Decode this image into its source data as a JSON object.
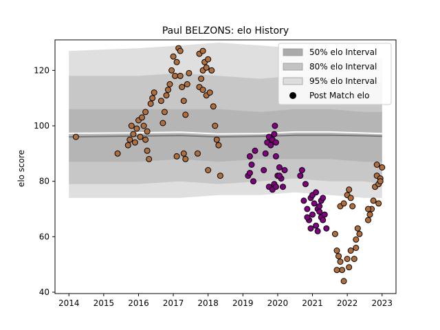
{
  "chart_data": {
    "type": "scatter",
    "title": "Paul BELZONS: elo History",
    "xlabel": "",
    "ylabel": "elo score",
    "xlim": [
      2013.6,
      2023.4
    ],
    "ylim": [
      39.5,
      131
    ],
    "x_ticks": [
      2014,
      2015,
      2016,
      2017,
      2018,
      2019,
      2020,
      2021,
      2022,
      2023
    ],
    "y_ticks": [
      40,
      60,
      80,
      100,
      120
    ],
    "legend_position": "top-right",
    "legend": [
      {
        "label": "50% elo Interval",
        "kind": "patch",
        "color": "#aaaaaa"
      },
      {
        "label": "80% elo Interval",
        "kind": "patch",
        "color": "#c3c3c3"
      },
      {
        "label": "95% elo Interval",
        "kind": "patch",
        "color": "#dddddd"
      },
      {
        "label": "Post Match elo",
        "kind": "marker",
        "color": "#000000"
      }
    ],
    "colors": {
      "brown": "#b06e3c",
      "purple": "#800080",
      "edge": "#000000"
    },
    "bands": {
      "x": [
        2014.0,
        2016.0,
        2017.2,
        2018.3,
        2019.5,
        2020.5,
        2021.5,
        2022.5,
        2023.0
      ],
      "b95_lo": [
        74,
        74,
        74,
        75,
        75,
        76,
        75,
        74,
        74
      ],
      "b95_hi": [
        127,
        128,
        129,
        130,
        129,
        128,
        127,
        126,
        124
      ],
      "b80_lo": [
        79,
        79,
        80,
        79,
        80,
        81,
        80,
        80,
        79
      ],
      "b80_hi": [
        118,
        118,
        119,
        118,
        117,
        118,
        117,
        117,
        116
      ],
      "b50_lo": [
        87,
        87,
        88,
        87,
        88,
        88,
        88,
        87,
        87
      ],
      "b50_hi": [
        106,
        106,
        106,
        106,
        105,
        106,
        106,
        105,
        105
      ],
      "median": [
        96,
        96.3,
        96.5,
        96,
        96.2,
        96.6,
        96.6,
        96.4,
        96.2
      ],
      "mean": [
        97.3,
        97.5,
        97.7,
        97.1,
        97.2,
        97.8,
        97.8,
        97.4,
        97.2
      ]
    },
    "series": [
      {
        "color": "brown",
        "points": [
          [
            2014.2,
            96
          ],
          [
            2015.4,
            90
          ],
          [
            2015.7,
            93
          ],
          [
            2015.75,
            95
          ],
          [
            2015.8,
            100
          ],
          [
            2015.85,
            97
          ],
          [
            2015.9,
            94
          ],
          [
            2015.95,
            99
          ],
          [
            2016.0,
            102
          ],
          [
            2016.05,
            96
          ],
          [
            2016.1,
            103
          ],
          [
            2016.15,
            100
          ],
          [
            2016.2,
            105
          ],
          [
            2016.25,
            91
          ],
          [
            2016.3,
            88
          ],
          [
            2016.35,
            108
          ],
          [
            2016.4,
            110
          ],
          [
            2016.45,
            112
          ],
          [
            2016.2,
            95
          ],
          [
            2016.25,
            98
          ],
          [
            2016.65,
            109
          ],
          [
            2016.7,
            101
          ],
          [
            2016.75,
            105
          ],
          [
            2016.8,
            111
          ],
          [
            2016.85,
            113
          ],
          [
            2016.9,
            115
          ],
          [
            2016.95,
            120
          ],
          [
            2017.0,
            125
          ],
          [
            2017.05,
            118
          ],
          [
            2017.1,
            123
          ],
          [
            2017.15,
            128
          ],
          [
            2017.2,
            127
          ],
          [
            2017.25,
            114
          ],
          [
            2017.3,
            109
          ],
          [
            2017.35,
            104
          ],
          [
            2017.2,
            118
          ],
          [
            2017.1,
            89
          ],
          [
            2017.3,
            90
          ],
          [
            2017.35,
            88
          ],
          [
            2017.4,
            115
          ],
          [
            2017.45,
            119
          ],
          [
            2017.7,
            90
          ],
          [
            2017.75,
            114
          ],
          [
            2017.8,
            117
          ],
          [
            2017.85,
            120
          ],
          [
            2017.9,
            123
          ],
          [
            2017.95,
            121
          ],
          [
            2018.0,
            124
          ],
          [
            2017.75,
            126
          ],
          [
            2017.85,
            113
          ],
          [
            2017.95,
            111
          ],
          [
            2018.05,
            112
          ],
          [
            2018.1,
            120
          ],
          [
            2018.15,
            107
          ],
          [
            2018.2,
            100
          ],
          [
            2018.25,
            95
          ],
          [
            2018.3,
            93
          ],
          [
            2018.35,
            82
          ],
          [
            2018.0,
            84
          ],
          [
            2017.85,
            127
          ]
        ]
      },
      {
        "color": "purple",
        "points": [
          [
            2019.15,
            82
          ],
          [
            2019.2,
            89
          ],
          [
            2019.25,
            86
          ],
          [
            2019.3,
            80
          ],
          [
            2019.35,
            91
          ],
          [
            2019.7,
            94
          ],
          [
            2019.75,
            96
          ],
          [
            2019.8,
            93
          ],
          [
            2019.85,
            95
          ],
          [
            2019.9,
            97
          ],
          [
            2019.95,
            94
          ],
          [
            2019.65,
            90
          ],
          [
            2019.6,
            84
          ],
          [
            2019.75,
            78
          ],
          [
            2019.85,
            77
          ],
          [
            2019.9,
            79
          ],
          [
            2019.95,
            89
          ],
          [
            2020.0,
            82
          ],
          [
            2020.05,
            85
          ],
          [
            2020.1,
            81
          ],
          [
            2020.15,
            78
          ],
          [
            2020.2,
            84
          ],
          [
            2019.92,
            100
          ],
          [
            2020.05,
            82
          ],
          [
            2019.2,
            83
          ],
          [
            2019.95,
            78
          ]
        ]
      },
      {
        "color": "purple",
        "points": [
          [
            2020.65,
            82
          ],
          [
            2020.7,
            84
          ],
          [
            2020.75,
            73
          ],
          [
            2020.8,
            79
          ],
          [
            2020.85,
            70
          ],
          [
            2020.9,
            66
          ],
          [
            2020.95,
            74
          ],
          [
            2021.0,
            75
          ],
          [
            2021.05,
            72
          ],
          [
            2021.1,
            76
          ],
          [
            2021.15,
            70
          ],
          [
            2021.2,
            69
          ],
          [
            2021.25,
            67
          ],
          [
            2021.3,
            66
          ],
          [
            2021.35,
            68
          ],
          [
            2021.4,
            63
          ],
          [
            2021.1,
            64
          ],
          [
            2021.15,
            62
          ],
          [
            2021.2,
            71
          ],
          [
            2021.25,
            73
          ],
          [
            2021.3,
            74
          ],
          [
            2021.0,
            68
          ],
          [
            2020.95,
            63
          ],
          [
            2020.85,
            67
          ]
        ]
      },
      {
        "color": "brown",
        "points": [
          [
            2021.65,
            61
          ],
          [
            2021.7,
            55
          ],
          [
            2021.75,
            53
          ],
          [
            2021.8,
            51
          ],
          [
            2021.85,
            48
          ],
          [
            2021.9,
            44
          ],
          [
            2021.7,
            48
          ],
          [
            2021.8,
            71
          ],
          [
            2021.9,
            72
          ],
          [
            2022.0,
            75
          ],
          [
            2022.05,
            77
          ],
          [
            2022.1,
            74
          ],
          [
            2022.15,
            71
          ],
          [
            2022.0,
            52
          ],
          [
            2022.05,
            49
          ],
          [
            2022.1,
            55
          ],
          [
            2022.2,
            52
          ],
          [
            2022.25,
            59
          ],
          [
            2022.3,
            63
          ],
          [
            2022.35,
            61
          ],
          [
            2022.25,
            56
          ],
          [
            2022.6,
            66
          ],
          [
            2022.65,
            68
          ],
          [
            2022.7,
            70
          ],
          [
            2022.75,
            73
          ],
          [
            2022.8,
            78
          ],
          [
            2022.85,
            82
          ],
          [
            2022.9,
            79
          ],
          [
            2022.95,
            81
          ],
          [
            2022.85,
            86
          ],
          [
            2022.9,
            72
          ],
          [
            2023.0,
            85
          ],
          [
            2022.95,
            80
          ],
          [
            2022.6,
            70
          ]
        ]
      }
    ]
  }
}
